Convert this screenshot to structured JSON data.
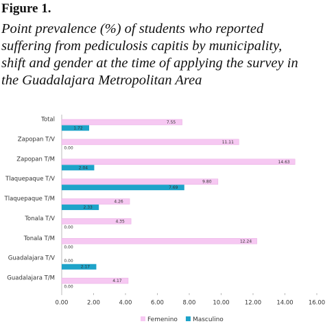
{
  "figure_label": "Figure 1.",
  "caption": [
    "Point prevalence (%) of students who reported",
    "suffering from pediculosis capitis by municipality,",
    "shift and gender at the time of applying the survey in",
    "the Guadalajara Metropolitan Area"
  ],
  "chart_data": {
    "type": "hbar",
    "categories": [
      "Total",
      "Zapopan T/V",
      "Zapopan T/M",
      "Tlaquepaque T/V",
      "Tlaquepaque T/M",
      "Tonala T/V",
      "Tonala T/M",
      "Guadalajara T/V",
      "Guadalajara T/M"
    ],
    "series": [
      {
        "name": "Femenino",
        "color": "#f6c8f2",
        "values": [
          7.55,
          11.11,
          14.63,
          9.8,
          4.26,
          4.35,
          12.24,
          0,
          4.17
        ],
        "value_labels": [
          "7.55",
          "11.11",
          "14.63",
          "9.80",
          "4.26",
          "4.35",
          "12.24",
          "0.00",
          "4.17"
        ]
      },
      {
        "name": "Masculino",
        "color": "#1ea3c9",
        "values": [
          1.72,
          0,
          2.04,
          7.69,
          2.33,
          0,
          0,
          2.17,
          0
        ],
        "value_labels": [
          "1.72",
          "0.00",
          "2.04",
          "7.69",
          "2.33",
          "0.00",
          "0.00",
          "2.17",
          "0.00"
        ]
      }
    ],
    "xlim": [
      0,
      16
    ],
    "xticks": [
      {
        "value": 0,
        "label": "0.00"
      },
      {
        "value": 2,
        "label": "2.00"
      },
      {
        "value": 4,
        "label": "4.00"
      },
      {
        "value": 6,
        "label": "6.00"
      },
      {
        "value": 8,
        "label": "8.00"
      },
      {
        "value": 10,
        "label": "10.00"
      },
      {
        "value": 12,
        "label": "12.00"
      },
      {
        "value": 14,
        "label": "14.00"
      },
      {
        "value": 16,
        "label": "16.00"
      }
    ],
    "legend": "bottom"
  }
}
